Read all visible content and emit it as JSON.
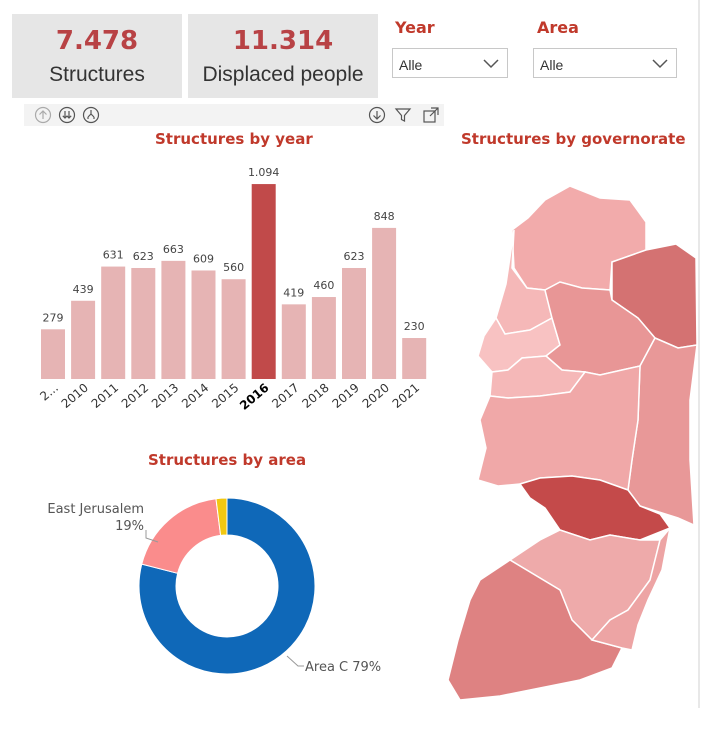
{
  "kpis": {
    "structures": {
      "value": "7.478",
      "label": "Structures"
    },
    "displaced": {
      "value": "11.314",
      "label": "Displaced people"
    }
  },
  "slicers": {
    "year": {
      "title": "Year",
      "value": "Alle"
    },
    "area": {
      "title": "Area",
      "value": "Alle"
    }
  },
  "toolbar": {
    "left_icons": [
      "drill-up-icon",
      "drill-down-all-icon",
      "expand-hierarchy-icon"
    ],
    "right_icons": [
      "drill-down-mode-icon",
      "filter-icon",
      "focus-mode-icon"
    ]
  },
  "colors": {
    "bar_default": "#e6b4b4",
    "bar_highlight": "#c14a4a",
    "accent_title": "#c0392b",
    "donut_area_c": "#0f68b8",
    "donut_east_jerusalem": "#fa8c8c",
    "donut_other": "#f2c811"
  },
  "chart_data": [
    {
      "type": "bar",
      "title": "Structures by year",
      "categories": [
        "2...",
        "2010",
        "2011",
        "2012",
        "2013",
        "2014",
        "2015",
        "2016",
        "2017",
        "2018",
        "2019",
        "2020",
        "2021"
      ],
      "values": [
        279,
        439,
        631,
        623,
        663,
        609,
        560,
        1094,
        419,
        460,
        623,
        848,
        230
      ],
      "value_labels": [
        "279",
        "439",
        "631",
        "623",
        "663",
        "609",
        "560",
        "1.094",
        "419",
        "460",
        "623",
        "848",
        "230"
      ],
      "highlight": "2016",
      "ylim": [
        0,
        1100
      ],
      "grid": false,
      "legend": "none"
    },
    {
      "type": "pie",
      "subtype": "donut",
      "title": "Structures by area",
      "slices": [
        {
          "name": "Area C",
          "label": "Area C 79%",
          "value": 79
        },
        {
          "name": "East Jerusalem",
          "label": "East Jerusalem",
          "pct_label": "19%",
          "value": 19
        },
        {
          "name": "Other",
          "value": 2
        }
      ]
    },
    {
      "type": "map",
      "title": "Structures by governorate",
      "regions": [
        {
          "id": "jenin",
          "shade": "#f2abab"
        },
        {
          "id": "tubas",
          "shade": "#d47272"
        },
        {
          "id": "tulkarm",
          "shade": "#f5b8b8"
        },
        {
          "id": "qalqiliya",
          "shade": "#f8c2c2"
        },
        {
          "id": "nablus",
          "shade": "#e89696"
        },
        {
          "id": "salfit",
          "shade": "#f5b8b8"
        },
        {
          "id": "jericho",
          "shade": "#e89898"
        },
        {
          "id": "ramallah",
          "shade": "#f0a8a8"
        },
        {
          "id": "jerusalem",
          "shade": "#c44a4a"
        },
        {
          "id": "bethlehem",
          "shade": "#eeaaaa"
        },
        {
          "id": "hebron",
          "shade": "#de8282"
        },
        {
          "id": "hebron-east",
          "shade": "#eda4a4"
        }
      ]
    }
  ]
}
